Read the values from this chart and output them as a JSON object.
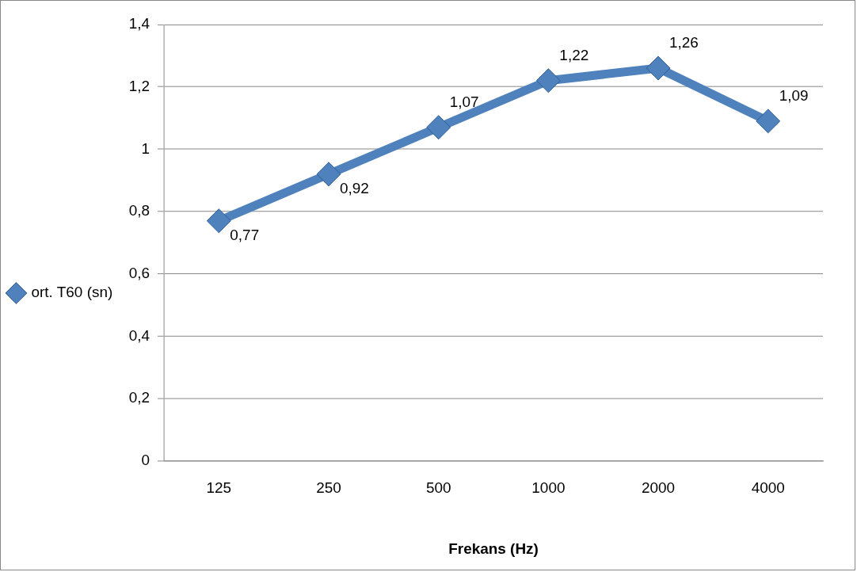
{
  "chart_data": {
    "type": "line",
    "xlabel": "Frekans (Hz)",
    "categories": [
      "125",
      "250",
      "500",
      "1000",
      "2000",
      "4000"
    ],
    "series": [
      {
        "name": "ort. T60 (sn)",
        "color": "#4f81bd",
        "values": [
          0.77,
          0.92,
          1.07,
          1.22,
          1.26,
          1.09
        ],
        "value_labels": [
          "0,77",
          "0,92",
          "1,07",
          "1,22",
          "1,26",
          "1,09"
        ]
      }
    ],
    "ylim": [
      0,
      1.4
    ],
    "yticks": [
      {
        "value": 0,
        "label": "0"
      },
      {
        "value": 0.2,
        "label": "0,2"
      },
      {
        "value": 0.4,
        "label": "0,4"
      },
      {
        "value": 0.6,
        "label": "0,6"
      },
      {
        "value": 0.8,
        "label": "0,8"
      },
      {
        "value": 1,
        "label": "1"
      },
      {
        "value": 1.2,
        "label": "1,2"
      },
      {
        "value": 1.4,
        "label": "1,4"
      }
    ],
    "grid": "y",
    "legend": "left",
    "marker": "diamond",
    "line_style": "solid"
  }
}
